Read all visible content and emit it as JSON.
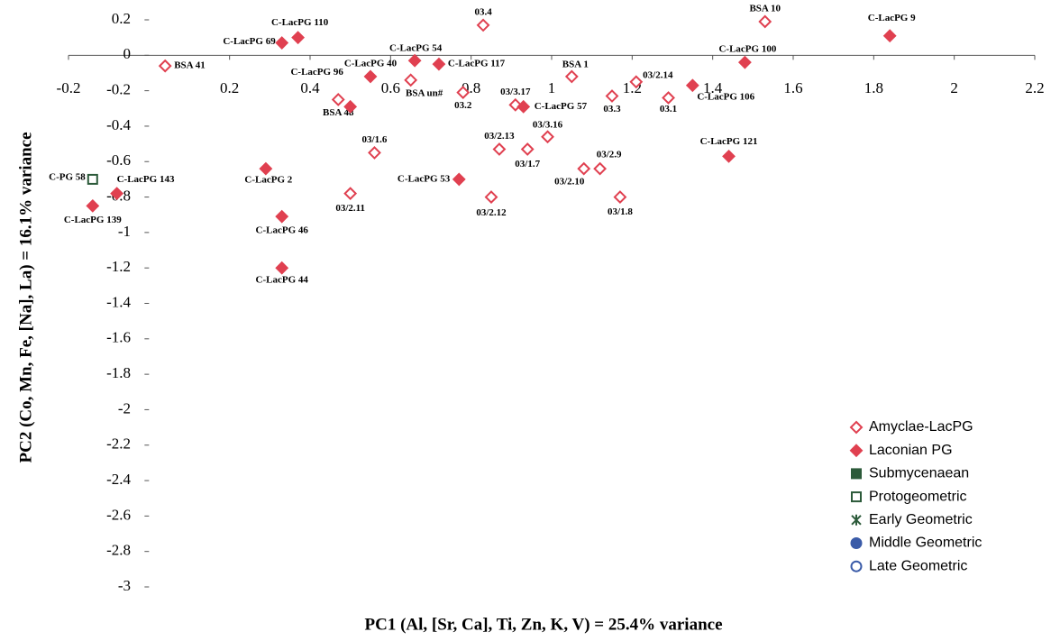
{
  "chart_data": {
    "type": "scatter",
    "x_label": "PC1 (Al, [Sr, Ca], Ti, Zn, K, V) = 25.4% variance",
    "y_label": "PC2 (Co, Mn, Fe, [Na], La) = 16.1% variance",
    "xlim": [
      -0.2,
      2.2
    ],
    "xticks": [
      -0.2,
      0.2,
      0.4,
      0.6,
      0.8,
      1,
      1.2,
      1.4,
      1.6,
      1.8,
      2,
      2.2
    ],
    "ylim": [
      -3,
      0.2
    ],
    "yticks": [
      0.2,
      0,
      -0.2,
      -0.4,
      -0.6,
      -0.8,
      -1,
      -1.2,
      -1.4,
      -1.6,
      -1.8,
      -2,
      -2.2,
      -2.4,
      -2.6,
      -2.8,
      -3
    ],
    "grid": false,
    "legend": "lower right",
    "series": [
      {
        "name": "Amyclae-LacPG",
        "color": "#e04050",
        "marker": "diamond",
        "filled": false,
        "x": [
          0.04,
          0.47,
          0.56,
          0.5,
          0.65,
          0.78,
          0.83,
          0.91,
          0.87,
          0.85,
          0.94,
          0.99,
          1.05,
          1.08,
          1.12,
          1.17,
          1.15,
          1.21,
          1.29,
          1.53
        ],
        "values": [
          -0.06,
          -0.25,
          -0.55,
          -0.78,
          -0.14,
          -0.21,
          0.17,
          -0.28,
          -0.53,
          -0.8,
          -0.53,
          -0.46,
          -0.12,
          -0.64,
          -0.64,
          -0.8,
          -0.23,
          -0.15,
          -0.24,
          0.19
        ],
        "labels": [
          "BSA 41",
          "BSA 48",
          "03/1.6",
          "03/2.11",
          "BSA un#",
          "03.2",
          "03.4",
          "03/3.17",
          "03/2.13",
          "03/2.12",
          "03/1.7",
          "03/3.16",
          "BSA 1",
          "03/2.10",
          "03/2.9",
          "03/1.8",
          "03.3",
          "03/2.14",
          "03.1",
          "BSA 10"
        ]
      },
      {
        "name": "Laconian PG",
        "color": "#e04050",
        "marker": "diamond",
        "filled": true,
        "x": [
          -0.14,
          -0.08,
          0.29,
          0.33,
          0.33,
          0.33,
          0.37,
          0.5,
          0.55,
          0.66,
          0.72,
          0.77,
          0.93,
          1.35,
          1.48,
          1.44,
          1.84
        ],
        "values": [
          -0.85,
          -0.78,
          -0.64,
          -0.91,
          -1.2,
          0.07,
          0.1,
          -0.29,
          -0.12,
          -0.03,
          -0.05,
          -0.7,
          -0.29,
          -0.17,
          -0.04,
          -0.57,
          0.11
        ],
        "labels": [
          "C-LacPG 139",
          "C-LacPG 143",
          "C-LacPG 2",
          "C-LacPG 46",
          "C-LacPG 44",
          "C-LacPG 69",
          "C-LacPG 110",
          "C-LacPG 96",
          "C-LacPG 40",
          "C-LacPG 54",
          "C-LacPG 117",
          "C-LacPG 53",
          "C-LacPG 57",
          "C-LacPG 106",
          "C-LacPG 100",
          "C-LacPG 121",
          "C-LacPG 9"
        ]
      },
      {
        "name": "Submycenaean",
        "color": "#2c5a3a",
        "marker": "square",
        "filled": true,
        "x": [],
        "values": [],
        "labels": []
      },
      {
        "name": "Protogeometric",
        "color": "#2c5a3a",
        "marker": "square",
        "filled": false,
        "x": [
          -0.14
        ],
        "values": [
          -0.7
        ],
        "labels": [
          "C-PG 58"
        ]
      },
      {
        "name": "Early Geometric",
        "color": "#2c5a3a",
        "marker": "star",
        "filled": true,
        "x": [],
        "values": [],
        "labels": []
      },
      {
        "name": "Middle Geometric",
        "color": "#3a5ba8",
        "marker": "circle",
        "filled": true,
        "x": [],
        "values": [],
        "labels": []
      },
      {
        "name": "Late Geometric",
        "color": "#3a5ba8",
        "marker": "circle",
        "filled": false,
        "x": [],
        "values": [],
        "labels": []
      }
    ]
  }
}
